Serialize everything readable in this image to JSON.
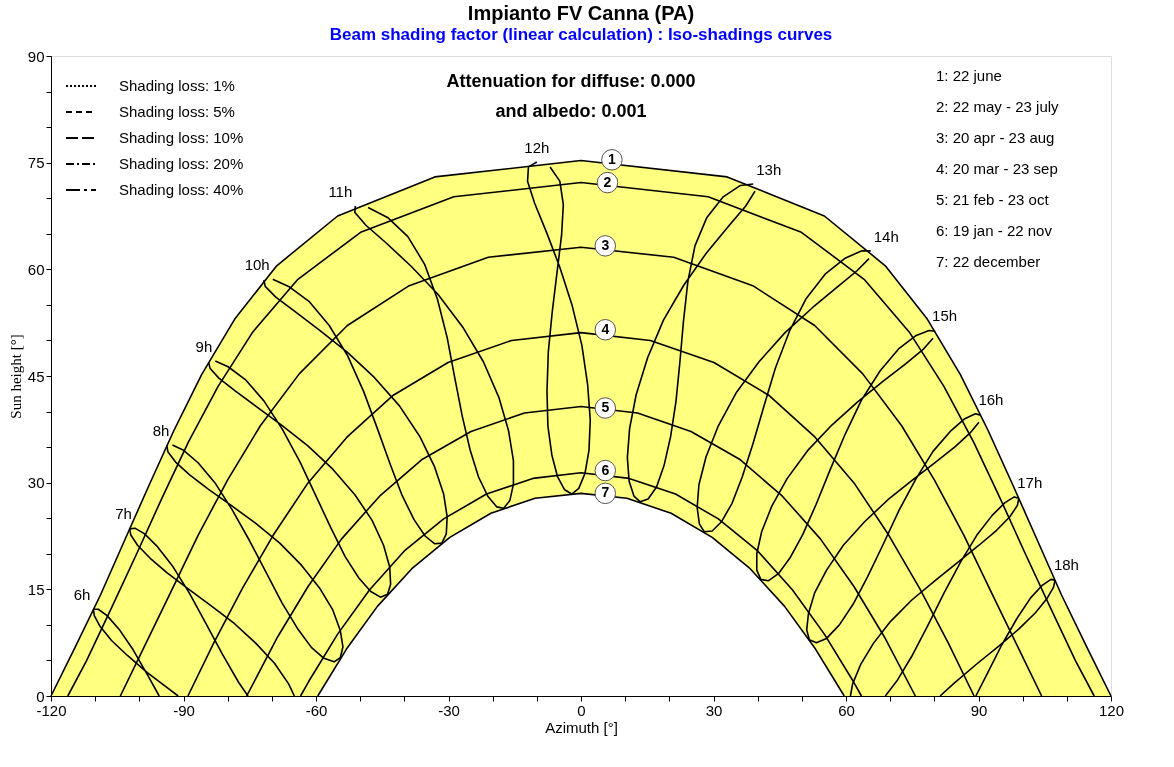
{
  "chart_data": {
    "type": "line",
    "title": "Impianto FV Canna (PA)",
    "subtitle": "Beam shading factor (linear calculation) : Iso-shadings curves",
    "xlabel": "Azimuth [°]",
    "ylabel": "Sun height [°]",
    "xlim": [
      -120,
      120
    ],
    "ylim": [
      0,
      90
    ],
    "xticks": [
      -120,
      {
        "value": -110,
        "label": null
      },
      {
        "value": -100,
        "label": null
      },
      -90,
      {
        "value": -80,
        "label": null
      },
      {
        "value": -70,
        "label": null
      },
      -60,
      {
        "value": -50,
        "label": null
      },
      {
        "value": -40,
        "label": null
      },
      -30,
      {
        "value": -20,
        "label": null
      },
      {
        "value": -10,
        "label": null
      },
      0,
      {
        "value": 10,
        "label": null
      },
      {
        "value": 20,
        "label": null
      },
      30,
      {
        "value": 40,
        "label": null
      },
      {
        "value": 50,
        "label": null
      },
      60,
      {
        "value": 70,
        "label": null
      },
      {
        "value": 80,
        "label": null
      },
      90,
      {
        "value": 100,
        "label": null
      },
      {
        "value": 110,
        "label": null
      },
      120
    ],
    "yticks": [
      0,
      {
        "value": 5,
        "label": null
      },
      {
        "value": 10,
        "label": null
      },
      15,
      {
        "value": 20,
        "label": null
      },
      {
        "value": 25,
        "label": null
      },
      30,
      {
        "value": 35,
        "label": null
      },
      {
        "value": 40,
        "label": null
      },
      45,
      {
        "value": 50,
        "label": null
      },
      {
        "value": 55,
        "label": null
      },
      60,
      {
        "value": 65,
        "label": null
      },
      {
        "value": 70,
        "label": null
      },
      75,
      {
        "value": 80,
        "label": null
      },
      {
        "value": 85,
        "label": null
      },
      90
    ],
    "grid": false,
    "legend": "top left",
    "series": [
      {
        "type": "area",
        "color": "#ffff80",
        "x": [
          -120,
          -114.5,
          -108.8,
          -103.4,
          -97.9,
          -92.2,
          -85.9,
          -78.4,
          -68.9,
          -55.1,
          -33.1,
          0,
          33.1,
          55.1,
          68.9,
          78.4,
          85.9,
          92.2,
          97.9,
          103.4,
          108.8,
          114.5,
          120
        ],
        "values": [
          0,
          6.9,
          14.2,
          21.8,
          29.5,
          37.3,
          45.2,
          53,
          60.5,
          67.5,
          73,
          75.3,
          73,
          67.5,
          60.5,
          53,
          45.2,
          37.3,
          29.5,
          21.8,
          14.2,
          6.9,
          0
        ]
      },
      {
        "color": "#000000",
        "x": [
          -116.2,
          -112,
          -106.3,
          -100.6,
          -94.9,
          -88.9,
          -82.2,
          -74.3,
          -64.1,
          -49.9,
          -28.8,
          0,
          28.8,
          49.9,
          64.1,
          74.3,
          82.2,
          88.9,
          94.9,
          100.6,
          106.3,
          112,
          116.2
        ],
        "values": [
          0,
          4.9,
          12.4,
          20,
          27.8,
          35.7,
          43.5,
          51.2,
          58.6,
          65.2,
          70.2,
          72.2,
          70.2,
          65.2,
          58.6,
          51.2,
          43.5,
          35.7,
          27.8,
          20,
          12.4,
          4.9,
          0
        ]
      },
      {
        "color": "#000000",
        "x": [
          -104.3,
          -98.9,
          -92.8,
          -86.7,
          -80,
          -72.6,
          -63.8,
          -52.9,
          -38.9,
          -21,
          0,
          21,
          38.9,
          52.9,
          63.8,
          72.6,
          80,
          86.7,
          92.8,
          98.9,
          104.3
        ],
        "values": [
          0,
          6.9,
          14.7,
          22.6,
          30.4,
          38,
          45.3,
          52.1,
          57.7,
          61.7,
          63.1,
          61.7,
          57.7,
          52.1,
          45.3,
          38,
          30.4,
          22.6,
          14.7,
          6.9,
          0
        ]
      },
      {
        "color": "#000000",
        "x": [
          -89,
          -83.2,
          -76.7,
          -69.7,
          -62,
          -53,
          -42.5,
          -30.1,
          -15.7,
          0,
          15.7,
          30.1,
          42.5,
          53,
          62,
          69.7,
          76.7,
          83.2,
          89
        ],
        "values": [
          0,
          7.4,
          15.1,
          22.6,
          29.8,
          36.4,
          42.3,
          46.9,
          50,
          51.1,
          50,
          46.9,
          42.3,
          36.4,
          29.8,
          22.6,
          15.1,
          7.4,
          0
        ]
      },
      {
        "color": "#000000",
        "x": [
          -75.7,
          -68.7,
          -61.8,
          -54.2,
          -45.6,
          -35.9,
          -24.9,
          -12.8,
          0,
          12.8,
          24.9,
          35.9,
          45.6,
          54.2,
          61.8,
          68.7,
          75.7
        ],
        "values": [
          0,
          8.3,
          15.4,
          22.1,
          28.1,
          33.3,
          37.2,
          39.8,
          40.7,
          39.8,
          37.2,
          33.3,
          28.1,
          22.1,
          15.4,
          8.3,
          0
        ]
      },
      {
        "color": "#000000",
        "x": [
          -63.5,
          -61.7,
          -55.1,
          -47.9,
          -40,
          -31.1,
          -21.4,
          -10.9,
          0,
          10.9,
          21.4,
          31.1,
          40,
          47.9,
          55.1,
          61.7,
          63.5
        ],
        "values": [
          0,
          2,
          8.7,
          14.9,
          20.4,
          24.9,
          28.4,
          30.6,
          31.4,
          30.6,
          28.4,
          24.9,
          20.4,
          14.9,
          8.7,
          2,
          0
        ]
      },
      {
        "type": "area",
        "color": "#ffffff",
        "x": [
          -59.6,
          -53.1,
          -46.1,
          -38.3,
          -29.7,
          -20.4,
          -10.4,
          0,
          10.4,
          20.4,
          29.7,
          38.3,
          46.1,
          53.1,
          59.6
        ],
        "values": [
          0,
          6.6,
          12.6,
          17.9,
          22.3,
          25.7,
          27.8,
          28.5,
          27.8,
          25.7,
          22.3,
          17.9,
          12.6,
          6.6,
          0
        ]
      },
      {
        "name": "6h",
        "color": "#000000",
        "x": [
          -110.4,
          -110.2,
          -108.9,
          -106.3,
          -102.7,
          -98.2,
          -93.1,
          -91.2,
          null,
          -95.5,
          -97.9,
          -101.4,
          -104.6,
          -107.3,
          -109.3,
          -110.3
        ],
        "values": [
          12.2,
          11.3,
          9.8,
          7.8,
          5.7,
          3.3,
          0.9,
          0,
          null,
          0,
          2.7,
          6.5,
          9.4,
          11.3,
          12.2,
          12.2
        ]
      },
      {
        "name": "7h",
        "color": "#000000",
        "x": [
          -102.2,
          -101.9,
          -100.4,
          -97.6,
          -93.7,
          -89,
          -83.8,
          -78.5,
          -73.6,
          -69.4,
          -66.2,
          -64.9,
          null,
          -75.4,
          -77.5,
          -81.2,
          -85,
          -88.7,
          -92.4,
          -95.9,
          -98.8,
          -101,
          -102.1
        ],
        "values": [
          23.5,
          22.6,
          21.2,
          19.4,
          17.3,
          15.1,
          12.7,
          10.2,
          7.4,
          4.6,
          1.7,
          0,
          null,
          0,
          1.9,
          5.9,
          10.3,
          14.5,
          18.2,
          21,
          22.8,
          23.6,
          23.5
        ]
      },
      {
        "name": "8h",
        "color": "#000000",
        "x": [
          -93.8,
          -93.5,
          -91.8,
          -88.6,
          -84.4,
          -79.2,
          -73.7,
          -68.2,
          -63.3,
          -59.2,
          -56.2,
          -54.5,
          -53.9,
          -54.5,
          -55.9,
          -58.2,
          -61,
          -64.2,
          -67.7,
          -71.3,
          -75.1,
          -79,
          -82.9,
          -86.7,
          -90.1,
          -92.5
        ],
        "values": [
          35.2,
          34.3,
          32.9,
          31.1,
          29.1,
          26.8,
          24.3,
          21.5,
          18.4,
          15.2,
          12.1,
          9.2,
          6.9,
          5.4,
          4.8,
          5.3,
          6.8,
          9.5,
          13.1,
          17.4,
          21.9,
          26.2,
          30,
          32.8,
          34.6,
          35.3
        ]
      },
      {
        "name": "9h",
        "color": "#000000",
        "x": [
          -84.3,
          -84,
          -82,
          -78.3,
          -73.5,
          -67.8,
          -61.9,
          -56.2,
          -51.2,
          -47.3,
          -44.7,
          -43.3,
          -43.1,
          -43.8,
          -45.4,
          -47.6,
          -50.3,
          -53.4,
          -56.6,
          -60,
          -63.6,
          -67.6,
          -71.8,
          -76,
          -79.9,
          -82.8
        ],
        "values": [
          46.9,
          46.1,
          44.7,
          42.9,
          40.7,
          38.1,
          35.2,
          31.9,
          28.3,
          24.7,
          21.2,
          18.1,
          15.7,
          14.3,
          13.9,
          14.7,
          16.6,
          19.6,
          23.6,
          28.1,
          32.9,
          37.5,
          41.5,
          44.5,
          46.3,
          47.1
        ]
      },
      {
        "name": "10h",
        "color": "#000000",
        "x": [
          -71.8,
          -71.5,
          -69.1,
          -64.8,
          -59.3,
          -53,
          -46.8,
          -41.1,
          -36.5,
          -33.2,
          -31.1,
          -30.3,
          -30.5,
          -31.5,
          -33.1,
          -35.3,
          -37.8,
          -40.5,
          -43.2,
          -46.1,
          -49.2,
          -52.8,
          -57,
          -61.6,
          -66.2,
          -69.8
        ],
        "values": [
          58.5,
          57.6,
          56.1,
          54.1,
          51.5,
          48.4,
          44.8,
          40.8,
          36.5,
          32.3,
          28.4,
          25.2,
          22.8,
          21.5,
          21.4,
          22.5,
          24.8,
          28.2,
          32.6,
          37.6,
          42.8,
          47.8,
          52.1,
          55.5,
          57.6,
          58.6
        ]
      },
      {
        "name": "11h",
        "color": "#000000",
        "x": [
          -51.1,
          -51.2,
          -48.7,
          -44.1,
          -38.4,
          -32.4,
          -26.8,
          -22.1,
          -18.6,
          -16.4,
          -15.3,
          -15.3,
          -16.1,
          -17.5,
          -19.1,
          -21.1,
          -23.2,
          -25.1,
          -26.9,
          -28.6,
          -30.3,
          -32.5,
          -35.4,
          -39.2,
          -43.8,
          -48.2
        ],
        "values": [
          68.9,
          68,
          66.2,
          63.7,
          60.4,
          56.5,
          51.9,
          47,
          42,
          37.3,
          33.1,
          29.8,
          27.5,
          26.4,
          26.6,
          28.1,
          30.8,
          34.6,
          39.4,
          44.8,
          50.4,
          55.8,
          60.7,
          64.6,
          67.3,
          68.7
        ]
      },
      {
        "name": "12h",
        "color": "#000000",
        "x": [
          -10,
          -11.9,
          -12.1,
          -10.5,
          -7.8,
          -4.8,
          -2,
          0.2,
          1.5,
          2.1,
          1.8,
          0.9,
          -0.5,
          -2.1,
          -3.7,
          -5.3,
          -6.6,
          -7.5,
          -7.7,
          -7.4,
          -6.5,
          -5.4,
          -4.4,
          -4,
          -4.8,
          -7
        ],
        "values": [
          75.1,
          74.4,
          72.4,
          69.3,
          65.2,
          60.3,
          54.9,
          49.3,
          43.8,
          38.8,
          34.5,
          31.3,
          29.2,
          28.4,
          29,
          30.8,
          33.9,
          38,
          42.9,
          48.4,
          54.1,
          59.7,
          64.8,
          69.1,
          72.4,
          74.4
        ]
      },
      {
        "name": "13h",
        "color": "#000000",
        "x": [
          39,
          36.1,
          32.2,
          28.5,
          25.8,
          24.2,
          23.2,
          22.4,
          21.5,
          20.3,
          18.8,
          17.1,
          15.2,
          13.4,
          12,
          10.9,
          10.5,
          11,
          12.5,
          15.1,
          18.7,
          23.3,
          28.4,
          33.3,
          37.3,
          39.4
        ],
        "values": [
          72,
          71.8,
          70.2,
          67.3,
          63.3,
          58.3,
          52.7,
          47,
          41.4,
          36.5,
          32.4,
          29.4,
          27.7,
          27.3,
          28.1,
          30.2,
          33.5,
          37.6,
          42.4,
          47.6,
          52.9,
          57.8,
          62.3,
          66,
          68.9,
          71
        ]
      },
      {
        "name": "14h",
        "color": "#000000",
        "x": [
          65.6,
          63.6,
          59.9,
          55.4,
          51,
          47.2,
          44,
          41.4,
          38.9,
          36.5,
          34.2,
          31.8,
          29.7,
          27.9,
          26.8,
          26.3,
          26.7,
          28.3,
          31.1,
          35.1,
          40.3,
          46.2,
          52.4,
          58,
          62.5,
          65.2
        ],
        "values": [
          62.6,
          62.6,
          61.6,
          59.4,
          55.9,
          51.3,
          46.1,
          40.7,
          35.4,
          30.8,
          27.1,
          24.5,
          23.2,
          23.1,
          24.2,
          26.5,
          29.7,
          33.6,
          38,
          42.6,
          47,
          51.1,
          54.6,
          57.5,
          59.8,
          61.5
        ]
      },
      {
        "name": "15h",
        "color": "#000000",
        "x": [
          80.2,
          78.8,
          75.9,
          71.9,
          67.7,
          63.5,
          59.8,
          56.4,
          53.2,
          50.2,
          47.3,
          44.7,
          42.4,
          40.7,
          39.8,
          39.8,
          40.9,
          43.2,
          46.7,
          51.3,
          56.8,
          62.7,
          68.5,
          73.5,
          77.4,
          79.7
        ],
        "values": [
          51.3,
          51.4,
          50.7,
          48.8,
          45.7,
          41.6,
          36.8,
          31.8,
          26.9,
          22.7,
          19.4,
          17.2,
          16.2,
          16.4,
          17.7,
          20,
          23.1,
          26.7,
          30.6,
          34.5,
          38.1,
          41.4,
          44.3,
          46.7,
          48.7,
          50.3
        ]
      },
      {
        "name": "16h",
        "color": "#000000",
        "x": [
          90.5,
          89.3,
          86.9,
          83.6,
          79.7,
          75.8,
          72,
          68.4,
          64.9,
          61.6,
          58.5,
          55.6,
          53.3,
          51.7,
          51.1,
          51.5,
          52.9,
          55.6,
          59.4,
          64.2,
          69.5,
          75.1,
          80.3,
          84.8,
          88.1,
          90.1
        ],
        "values": [
          39.5,
          39.7,
          39,
          37.2,
          34.4,
          30.5,
          26.1,
          21.3,
          16.8,
          12.9,
          10,
          8.1,
          7.5,
          7.9,
          9.3,
          11.6,
          14.5,
          17.7,
          21.2,
          24.5,
          27.6,
          30.4,
          32.9,
          35.1,
          37,
          38.5
        ]
      },
      {
        "name": "17h",
        "color": "#000000",
        "x": [
          99.1,
          98.1,
          96,
          93.1,
          89.6,
          86,
          82.3,
          78.6,
          75,
          71.5,
          68.9,
          null,
          61.0,
          61.5,
          63.3,
          66.2,
          70.1,
          74.9,
          80.1,
          85.3,
          90.1,
          94.1,
          97.1,
          98.8,
          99.1
        ],
        "values": [
          27.8,
          28,
          27.2,
          25.4,
          22.6,
          18.9,
          14.6,
          10,
          5.7,
          2.1,
          0,
          null,
          0,
          1.7,
          4.4,
          7.4,
          10.5,
          13.5,
          16.2,
          18.8,
          21.2,
          23.3,
          25.2,
          26.8,
          27.7
        ]
      },
      {
        "name": "18h",
        "color": "#000000",
        "x": [
          107.3,
          106.4,
          104.5,
          101.8,
          98.7,
          95.2,
          91.7,
          89.4,
          null,
          81.3,
          84.5,
          89.6,
          94.6,
          99.1,
          102.9,
          105.5,
          107,
          107.3
        ],
        "values": [
          16.3,
          16.4,
          15.6,
          13.8,
          10.9,
          7.1,
          2.8,
          0,
          null,
          0,
          1.8,
          4.5,
          7,
          9.4,
          11.7,
          13.7,
          15.3,
          16.2
        ]
      },
      {
        "name": "Shading loss: 1%",
        "color": "#000000",
        "line_style": "dotted"
      },
      {
        "name": "Shading loss: 5%",
        "color": "#000000",
        "line_style": "dashed"
      },
      {
        "name": "Shading loss: 10%",
        "color": "#000000",
        "line_style": "longdashed"
      },
      {
        "name": "Shading loss: 20%",
        "color": "#000000",
        "line_style": "dashdot"
      },
      {
        "name": "Shading loss: 40%",
        "color": "#000000",
        "line_style": "longdashdot"
      }
    ],
    "annotations": [
      "Attenuation for diffuse: 0.000",
      "and albedo: 0.001",
      "1: 22 june",
      "2: 22 may - 23 july",
      "3: 20 apr - 23 aug",
      "4: 20 mar - 23 sep",
      "5: 21 feb - 23 oct",
      "6: 19 jan - 22 nov",
      "7: 22 december",
      {
        "text": "1",
        "x": 7,
        "y": 75.4
      },
      {
        "text": "2",
        "x": 6,
        "y": 72.2
      },
      {
        "text": "3",
        "x": 5.5,
        "y": 63.3
      },
      {
        "text": "4",
        "x": 5.5,
        "y": 51.5
      },
      {
        "text": "5",
        "x": 5.5,
        "y": 40.5
      },
      {
        "text": "6",
        "x": 5.5,
        "y": 31.7
      },
      {
        "text": "7",
        "x": 5.5,
        "y": 28.5
      }
    ]
  }
}
